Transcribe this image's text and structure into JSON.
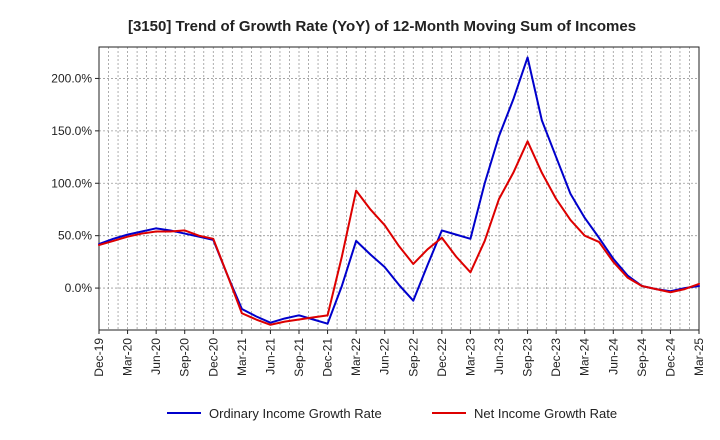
{
  "chart_data": {
    "type": "line",
    "title": "[3150]  Trend of Growth Rate (YoY) of 12-Month Moving Sum of Incomes",
    "xlabel": "",
    "ylabel": "",
    "ylim": [
      -40,
      230
    ],
    "y_ticks": [
      0,
      50,
      100,
      150,
      200
    ],
    "y_tick_labels": [
      "0.0%",
      "50.0%",
      "100.0%",
      "150.0%",
      "200.0%"
    ],
    "x_tick_labels": [
      "Dec-19",
      "Mar-20",
      "Jun-20",
      "Sep-20",
      "Dec-20",
      "Mar-21",
      "Jun-21",
      "Sep-21",
      "Dec-21",
      "Mar-22",
      "Jun-22",
      "Sep-22",
      "Dec-22",
      "Mar-23",
      "Jun-23",
      "Sep-23",
      "Dec-23",
      "Mar-24",
      "Jun-24",
      "Sep-24",
      "Dec-24",
      "Mar-25"
    ],
    "grid": true,
    "legend_position": "bottom",
    "series": [
      {
        "name": "Ordinary Income Growth Rate",
        "color": "#0000cc",
        "values": [
          42,
          47,
          51,
          54,
          57,
          55,
          52,
          49,
          46,
          12,
          -20,
          -27,
          -33,
          -29,
          -26,
          -30,
          -34,
          2,
          45,
          32,
          20,
          3,
          -12,
          22,
          55,
          51,
          47,
          100,
          145,
          180,
          220,
          160,
          125,
          90,
          67,
          48,
          28,
          12,
          2,
          -1,
          -3,
          0,
          2
        ]
      },
      {
        "name": "Net Income Growth Rate",
        "color": "#dd0000",
        "values": [
          41,
          45,
          49,
          52,
          54,
          54,
          55,
          50,
          47,
          12,
          -24,
          -30,
          -35,
          -32,
          -30,
          -28,
          -26,
          30,
          93,
          75,
          60,
          40,
          23,
          37,
          48,
          30,
          15,
          45,
          85,
          110,
          140,
          110,
          85,
          65,
          50,
          44,
          25,
          10,
          2,
          -1,
          -4,
          -1,
          4
        ]
      }
    ]
  }
}
